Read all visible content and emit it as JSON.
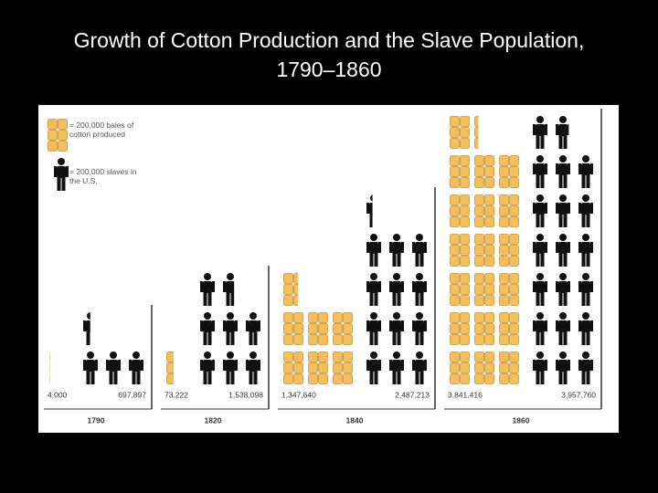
{
  "chart_data": {
    "type": "pictograph",
    "title": "Growth of Cotton Production and the Slave Population, 1790–1860",
    "categories": [
      "1790",
      "1820",
      "1840",
      "1860"
    ],
    "icon_value": 200000,
    "icons_per_row": 3,
    "series": [
      {
        "name": "= 200,000 bales of cotton produced",
        "icon": "bale",
        "color": "#f2bf5e",
        "values": [
          4000,
          73222,
          1347640,
          3841416
        ],
        "value_labels": [
          "4,000",
          "73,222",
          "1,347,640",
          "3,841,416"
        ]
      },
      {
        "name": "= 200,000 slaves in the U.S.",
        "icon": "person",
        "color": "#111111",
        "values": [
          697897,
          1538098,
          2487213,
          3957760
        ],
        "value_labels": [
          "697,897",
          "1,538,098",
          "2,487,213",
          "3,957,760"
        ]
      }
    ]
  }
}
